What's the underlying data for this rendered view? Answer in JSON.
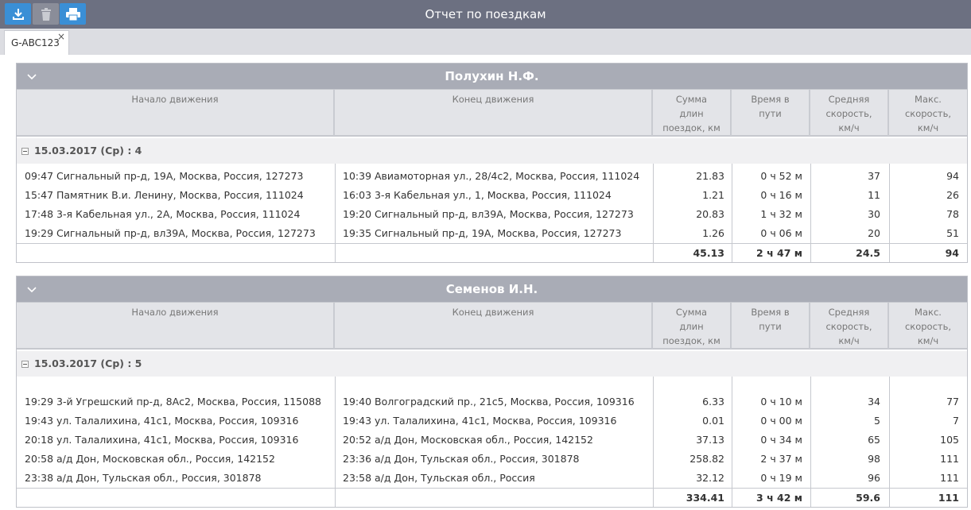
{
  "header": {
    "title": "Отчет по поездкам",
    "tools": [
      {
        "name": "download-icon"
      },
      {
        "name": "trash-icon"
      },
      {
        "name": "print-icon"
      }
    ]
  },
  "tabs": [
    {
      "label": "G-ABC123",
      "close": "×"
    }
  ],
  "columns": [
    "Начало движения",
    "Конец движения",
    "Сумма длин поездок, км",
    "Время в пути",
    "Средняя скорость, км/ч",
    "Макс. скорость, км/ч"
  ],
  "groups": [
    {
      "name": "Полухин Н.Ф.",
      "date": "15.03.2017 (Ср) : 4",
      "rows": [
        {
          "start": "09:47 Сигнальный пр-д, 19А, Москва, Россия, 127273",
          "end": "10:39 Авиамоторная ул., 28/4с2, Москва, Россия, 111024",
          "dist": "21.83",
          "time": "0 ч 52 м",
          "avg": "37",
          "max": "94"
        },
        {
          "start": "15:47 Памятник В.и. Ленину, Москва, Россия, 111024",
          "end": "16:03 3-я Кабельная ул., 1, Москва, Россия, 111024",
          "dist": "1.21",
          "time": "0 ч 16 м",
          "avg": "11",
          "max": "26"
        },
        {
          "start": "17:48 3-я Кабельная ул., 2А, Москва, Россия, 111024",
          "end": "19:20 Сигнальный пр-д, вл39А, Москва, Россия, 127273",
          "dist": "20.83",
          "time": "1 ч 32 м",
          "avg": "30",
          "max": "78"
        },
        {
          "start": "19:29 Сигнальный пр-д, вл39А, Москва, Россия, 127273",
          "end": "19:35 Сигнальный пр-д, 19А, Москва, Россия, 127273",
          "dist": "1.26",
          "time": "0 ч 06 м",
          "avg": "20",
          "max": "51"
        }
      ],
      "total": {
        "dist": "45.13",
        "time": "2 ч 47 м",
        "avg": "24.5",
        "max": "94"
      }
    },
    {
      "name": "Семенов И.Н.",
      "date": "15.03.2017 (Ср) : 5",
      "rows": [
        {
          "start": "19:29 3-й Угрешский пр-д, 8Ас2, Москва, Россия, 115088",
          "end": "19:40 Волгоградский пр., 21с5, Москва, Россия, 109316",
          "dist": "6.33",
          "time": "0 ч 10 м",
          "avg": "34",
          "max": "77"
        },
        {
          "start": "19:43 ул. Талалихина, 41с1, Москва, Россия, 109316",
          "end": "19:43 ул. Талалихина, 41с1, Москва, Россия, 109316",
          "dist": "0.01",
          "time": "0 ч 00 м",
          "avg": "5",
          "max": "7"
        },
        {
          "start": "20:18 ул. Талалихина, 41с1, Москва, Россия, 109316",
          "end": "20:52 а/д Дон, Московская обл., Россия, 142152",
          "dist": "37.13",
          "time": "0 ч 34 м",
          "avg": "65",
          "max": "105"
        },
        {
          "start": "20:58 а/д Дон, Московская обл., Россия, 142152",
          "end": "23:36 а/д Дон, Тульская обл., Россия, 301878",
          "dist": "258.82",
          "time": "2 ч 37 м",
          "avg": "98",
          "max": "111"
        },
        {
          "start": "23:38 а/д Дон, Тульская обл., Россия, 301878",
          "end": "23:58 а/д Дон, Тульская обл., Россия",
          "dist": "32.12",
          "time": "0 ч 19 м",
          "avg": "96",
          "max": "111"
        }
      ],
      "total": {
        "dist": "334.41",
        "time": "3 ч 42 м",
        "avg": "59.6",
        "max": "111"
      }
    }
  ]
}
